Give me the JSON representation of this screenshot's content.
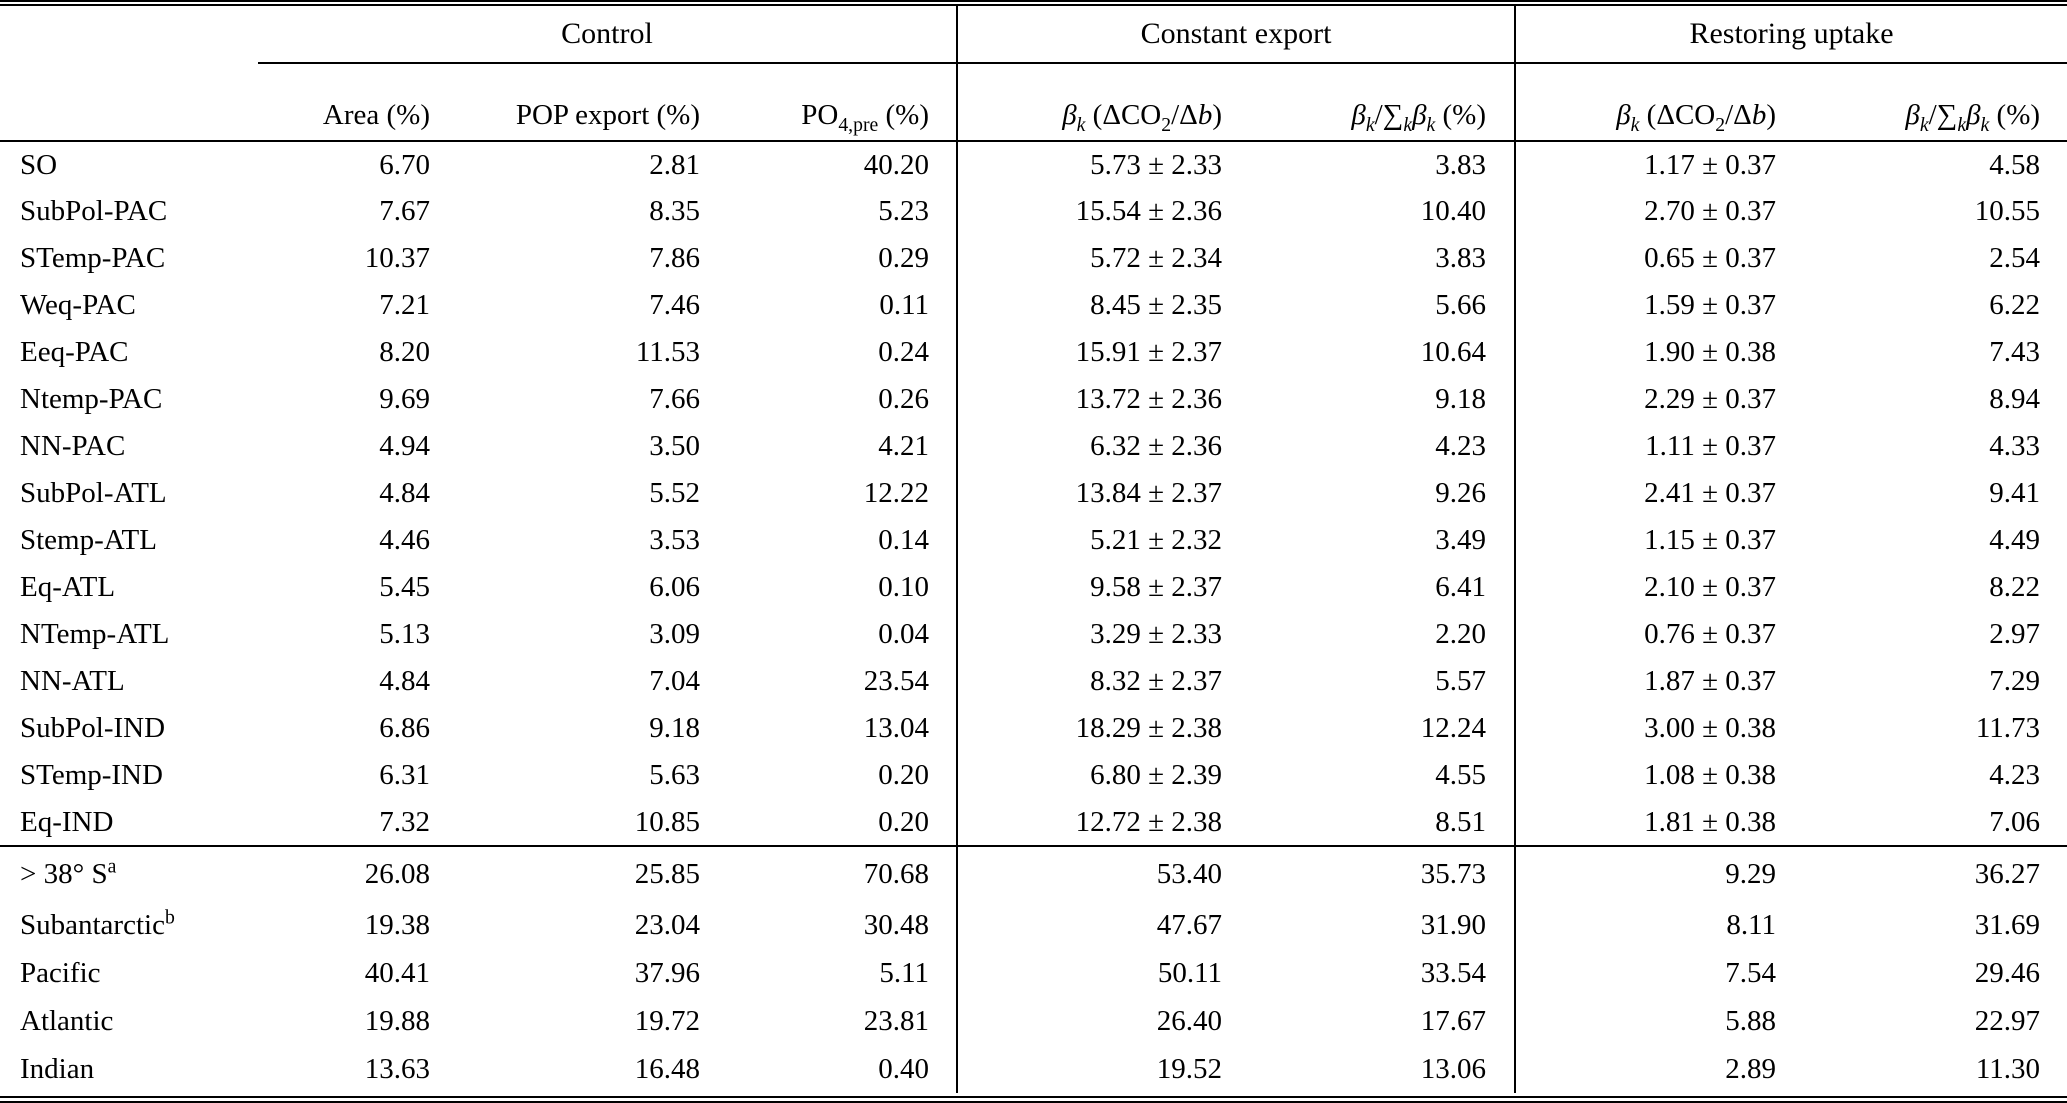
{
  "table": {
    "groups": [
      "Control",
      "Constant export",
      "Restoring uptake"
    ],
    "headers": {
      "area": "Area (%)",
      "pop_export": "POP export (%)",
      "po4_pre_html": "PO<sub>4,pre</sub> (%)",
      "beta_html": "<i>β<sub>k</sub></i> (ΔCO<sub>2</sub>/Δ<i>b</i>)",
      "beta_frac_html": "<i>β<sub>k</sub></i>/∑<sub><i>k</i></sub><i>β<sub>k</sub></i> (%)"
    },
    "regions": [
      {
        "label": "SO",
        "label_sup": "",
        "area": "6.70",
        "pop_export": "2.81",
        "po4_pre": "40.20",
        "ce_beta": "5.73 ± 2.33",
        "ce_frac": "3.83",
        "ru_beta": "1.17 ± 0.37",
        "ru_frac": "4.58"
      },
      {
        "label": "SubPol-PAC",
        "label_sup": "",
        "area": "7.67",
        "pop_export": "8.35",
        "po4_pre": "5.23",
        "ce_beta": "15.54 ± 2.36",
        "ce_frac": "10.40",
        "ru_beta": "2.70 ± 0.37",
        "ru_frac": "10.55"
      },
      {
        "label": "STemp-PAC",
        "label_sup": "",
        "area": "10.37",
        "pop_export": "7.86",
        "po4_pre": "0.29",
        "ce_beta": "5.72 ± 2.34",
        "ce_frac": "3.83",
        "ru_beta": "0.65 ± 0.37",
        "ru_frac": "2.54"
      },
      {
        "label": "Weq-PAC",
        "label_sup": "",
        "area": "7.21",
        "pop_export": "7.46",
        "po4_pre": "0.11",
        "ce_beta": "8.45 ± 2.35",
        "ce_frac": "5.66",
        "ru_beta": "1.59 ± 0.37",
        "ru_frac": "6.22"
      },
      {
        "label": "Eeq-PAC",
        "label_sup": "",
        "area": "8.20",
        "pop_export": "11.53",
        "po4_pre": "0.24",
        "ce_beta": "15.91 ± 2.37",
        "ce_frac": "10.64",
        "ru_beta": "1.90 ± 0.38",
        "ru_frac": "7.43"
      },
      {
        "label": "Ntemp-PAC",
        "label_sup": "",
        "area": "9.69",
        "pop_export": "7.66",
        "po4_pre": "0.26",
        "ce_beta": "13.72 ± 2.36",
        "ce_frac": "9.18",
        "ru_beta": "2.29 ± 0.37",
        "ru_frac": "8.94"
      },
      {
        "label": "NN-PAC",
        "label_sup": "",
        "area": "4.94",
        "pop_export": "3.50",
        "po4_pre": "4.21",
        "ce_beta": "6.32 ± 2.36",
        "ce_frac": "4.23",
        "ru_beta": "1.11 ± 0.37",
        "ru_frac": "4.33"
      },
      {
        "label": "SubPol-ATL",
        "label_sup": "",
        "area": "4.84",
        "pop_export": "5.52",
        "po4_pre": "12.22",
        "ce_beta": "13.84 ± 2.37",
        "ce_frac": "9.26",
        "ru_beta": "2.41 ± 0.37",
        "ru_frac": "9.41"
      },
      {
        "label": "Stemp-ATL",
        "label_sup": "",
        "area": "4.46",
        "pop_export": "3.53",
        "po4_pre": "0.14",
        "ce_beta": "5.21 ± 2.32",
        "ce_frac": "3.49",
        "ru_beta": "1.15 ± 0.37",
        "ru_frac": "4.49"
      },
      {
        "label": "Eq-ATL",
        "label_sup": "",
        "area": "5.45",
        "pop_export": "6.06",
        "po4_pre": "0.10",
        "ce_beta": "9.58 ± 2.37",
        "ce_frac": "6.41",
        "ru_beta": "2.10 ± 0.37",
        "ru_frac": "8.22"
      },
      {
        "label": "NTemp-ATL",
        "label_sup": "",
        "area": "5.13",
        "pop_export": "3.09",
        "po4_pre": "0.04",
        "ce_beta": "3.29 ± 2.33",
        "ce_frac": "2.20",
        "ru_beta": "0.76 ± 0.37",
        "ru_frac": "2.97"
      },
      {
        "label": "NN-ATL",
        "label_sup": "",
        "area": "4.84",
        "pop_export": "7.04",
        "po4_pre": "23.54",
        "ce_beta": "8.32 ± 2.37",
        "ce_frac": "5.57",
        "ru_beta": "1.87 ± 0.37",
        "ru_frac": "7.29"
      },
      {
        "label": "SubPol-IND",
        "label_sup": "",
        "area": "6.86",
        "pop_export": "9.18",
        "po4_pre": "13.04",
        "ce_beta": "18.29 ± 2.38",
        "ce_frac": "12.24",
        "ru_beta": "3.00 ± 0.38",
        "ru_frac": "11.73"
      },
      {
        "label": "STemp-IND",
        "label_sup": "",
        "area": "6.31",
        "pop_export": "5.63",
        "po4_pre": "0.20",
        "ce_beta": "6.80 ± 2.39",
        "ce_frac": "4.55",
        "ru_beta": "1.08 ± 0.38",
        "ru_frac": "4.23"
      },
      {
        "label": "Eq-IND",
        "label_sup": "",
        "area": "7.32",
        "pop_export": "10.85",
        "po4_pre": "0.20",
        "ce_beta": "12.72 ± 2.38",
        "ce_frac": "8.51",
        "ru_beta": "1.81 ± 0.38",
        "ru_frac": "7.06"
      }
    ],
    "summary": [
      {
        "label": "> 38° S",
        "label_sup": "a",
        "area": "26.08",
        "pop_export": "25.85",
        "po4_pre": "70.68",
        "ce_beta": "53.40",
        "ce_frac": "35.73",
        "ru_beta": "9.29",
        "ru_frac": "36.27"
      },
      {
        "label": "Subantarctic",
        "label_sup": "b",
        "area": "19.38",
        "pop_export": "23.04",
        "po4_pre": "30.48",
        "ce_beta": "47.67",
        "ce_frac": "31.90",
        "ru_beta": "8.11",
        "ru_frac": "31.69"
      },
      {
        "label": "Pacific",
        "label_sup": "",
        "area": "40.41",
        "pop_export": "37.96",
        "po4_pre": "5.11",
        "ce_beta": "50.11",
        "ce_frac": "33.54",
        "ru_beta": "7.54",
        "ru_frac": "29.46"
      },
      {
        "label": "Atlantic",
        "label_sup": "",
        "area": "19.88",
        "pop_export": "19.72",
        "po4_pre": "23.81",
        "ce_beta": "26.40",
        "ce_frac": "17.67",
        "ru_beta": "5.88",
        "ru_frac": "22.97"
      },
      {
        "label": "Indian",
        "label_sup": "",
        "area": "13.63",
        "pop_export": "16.48",
        "po4_pre": "0.40",
        "ce_beta": "19.52",
        "ce_frac": "13.06",
        "ru_beta": "2.89",
        "ru_frac": "11.30"
      }
    ]
  }
}
